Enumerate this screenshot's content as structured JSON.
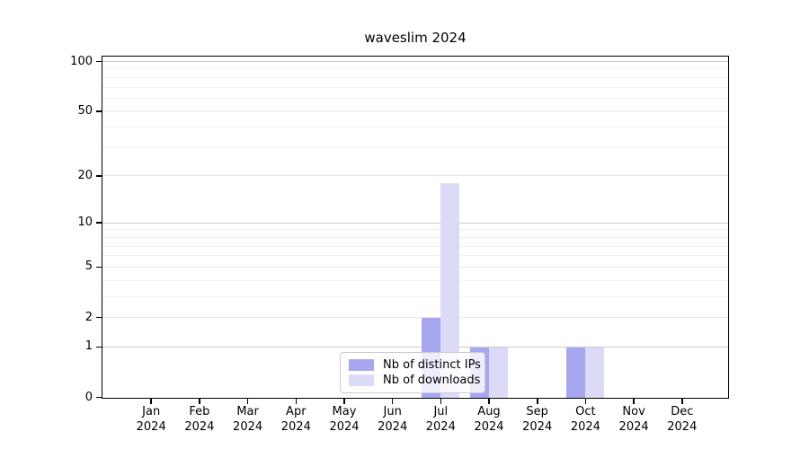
{
  "chart_data": {
    "type": "bar",
    "title": "waveslim 2024",
    "categories": [
      "Jan 2024",
      "Feb 2024",
      "Mar 2024",
      "Apr 2024",
      "May 2024",
      "Jun 2024",
      "Jul 2024",
      "Aug 2024",
      "Sep 2024",
      "Oct 2024",
      "Nov 2024",
      "Dec 2024"
    ],
    "series": [
      {
        "name": "Nb of distinct IPs",
        "color": "#a7a7f0",
        "values": [
          0,
          0,
          0,
          0,
          0,
          0,
          2,
          1,
          0,
          1,
          0,
          0
        ]
      },
      {
        "name": "Nb of downloads",
        "color": "#dbdbf8",
        "values": [
          0,
          0,
          0,
          0,
          0,
          0,
          18,
          1,
          0,
          1,
          0,
          0
        ]
      }
    ],
    "yscale": "log1p",
    "ylim": [
      0,
      110
    ],
    "yticks_major": [
      0,
      1,
      2,
      5,
      10,
      20,
      50,
      100
    ],
    "yticks_minor": [
      3,
      4,
      6,
      7,
      8,
      9,
      30,
      40,
      60,
      70,
      80,
      90
    ],
    "grid": "horizontal",
    "legend_position": "bottom-center-inside",
    "colors": {
      "grid_major_pow10": "#c9c9c9",
      "grid_major_other": "#e7e7e7",
      "grid_minor": "#f1f1f1",
      "spine": "#000000",
      "legend_border": "#cccccc"
    }
  }
}
